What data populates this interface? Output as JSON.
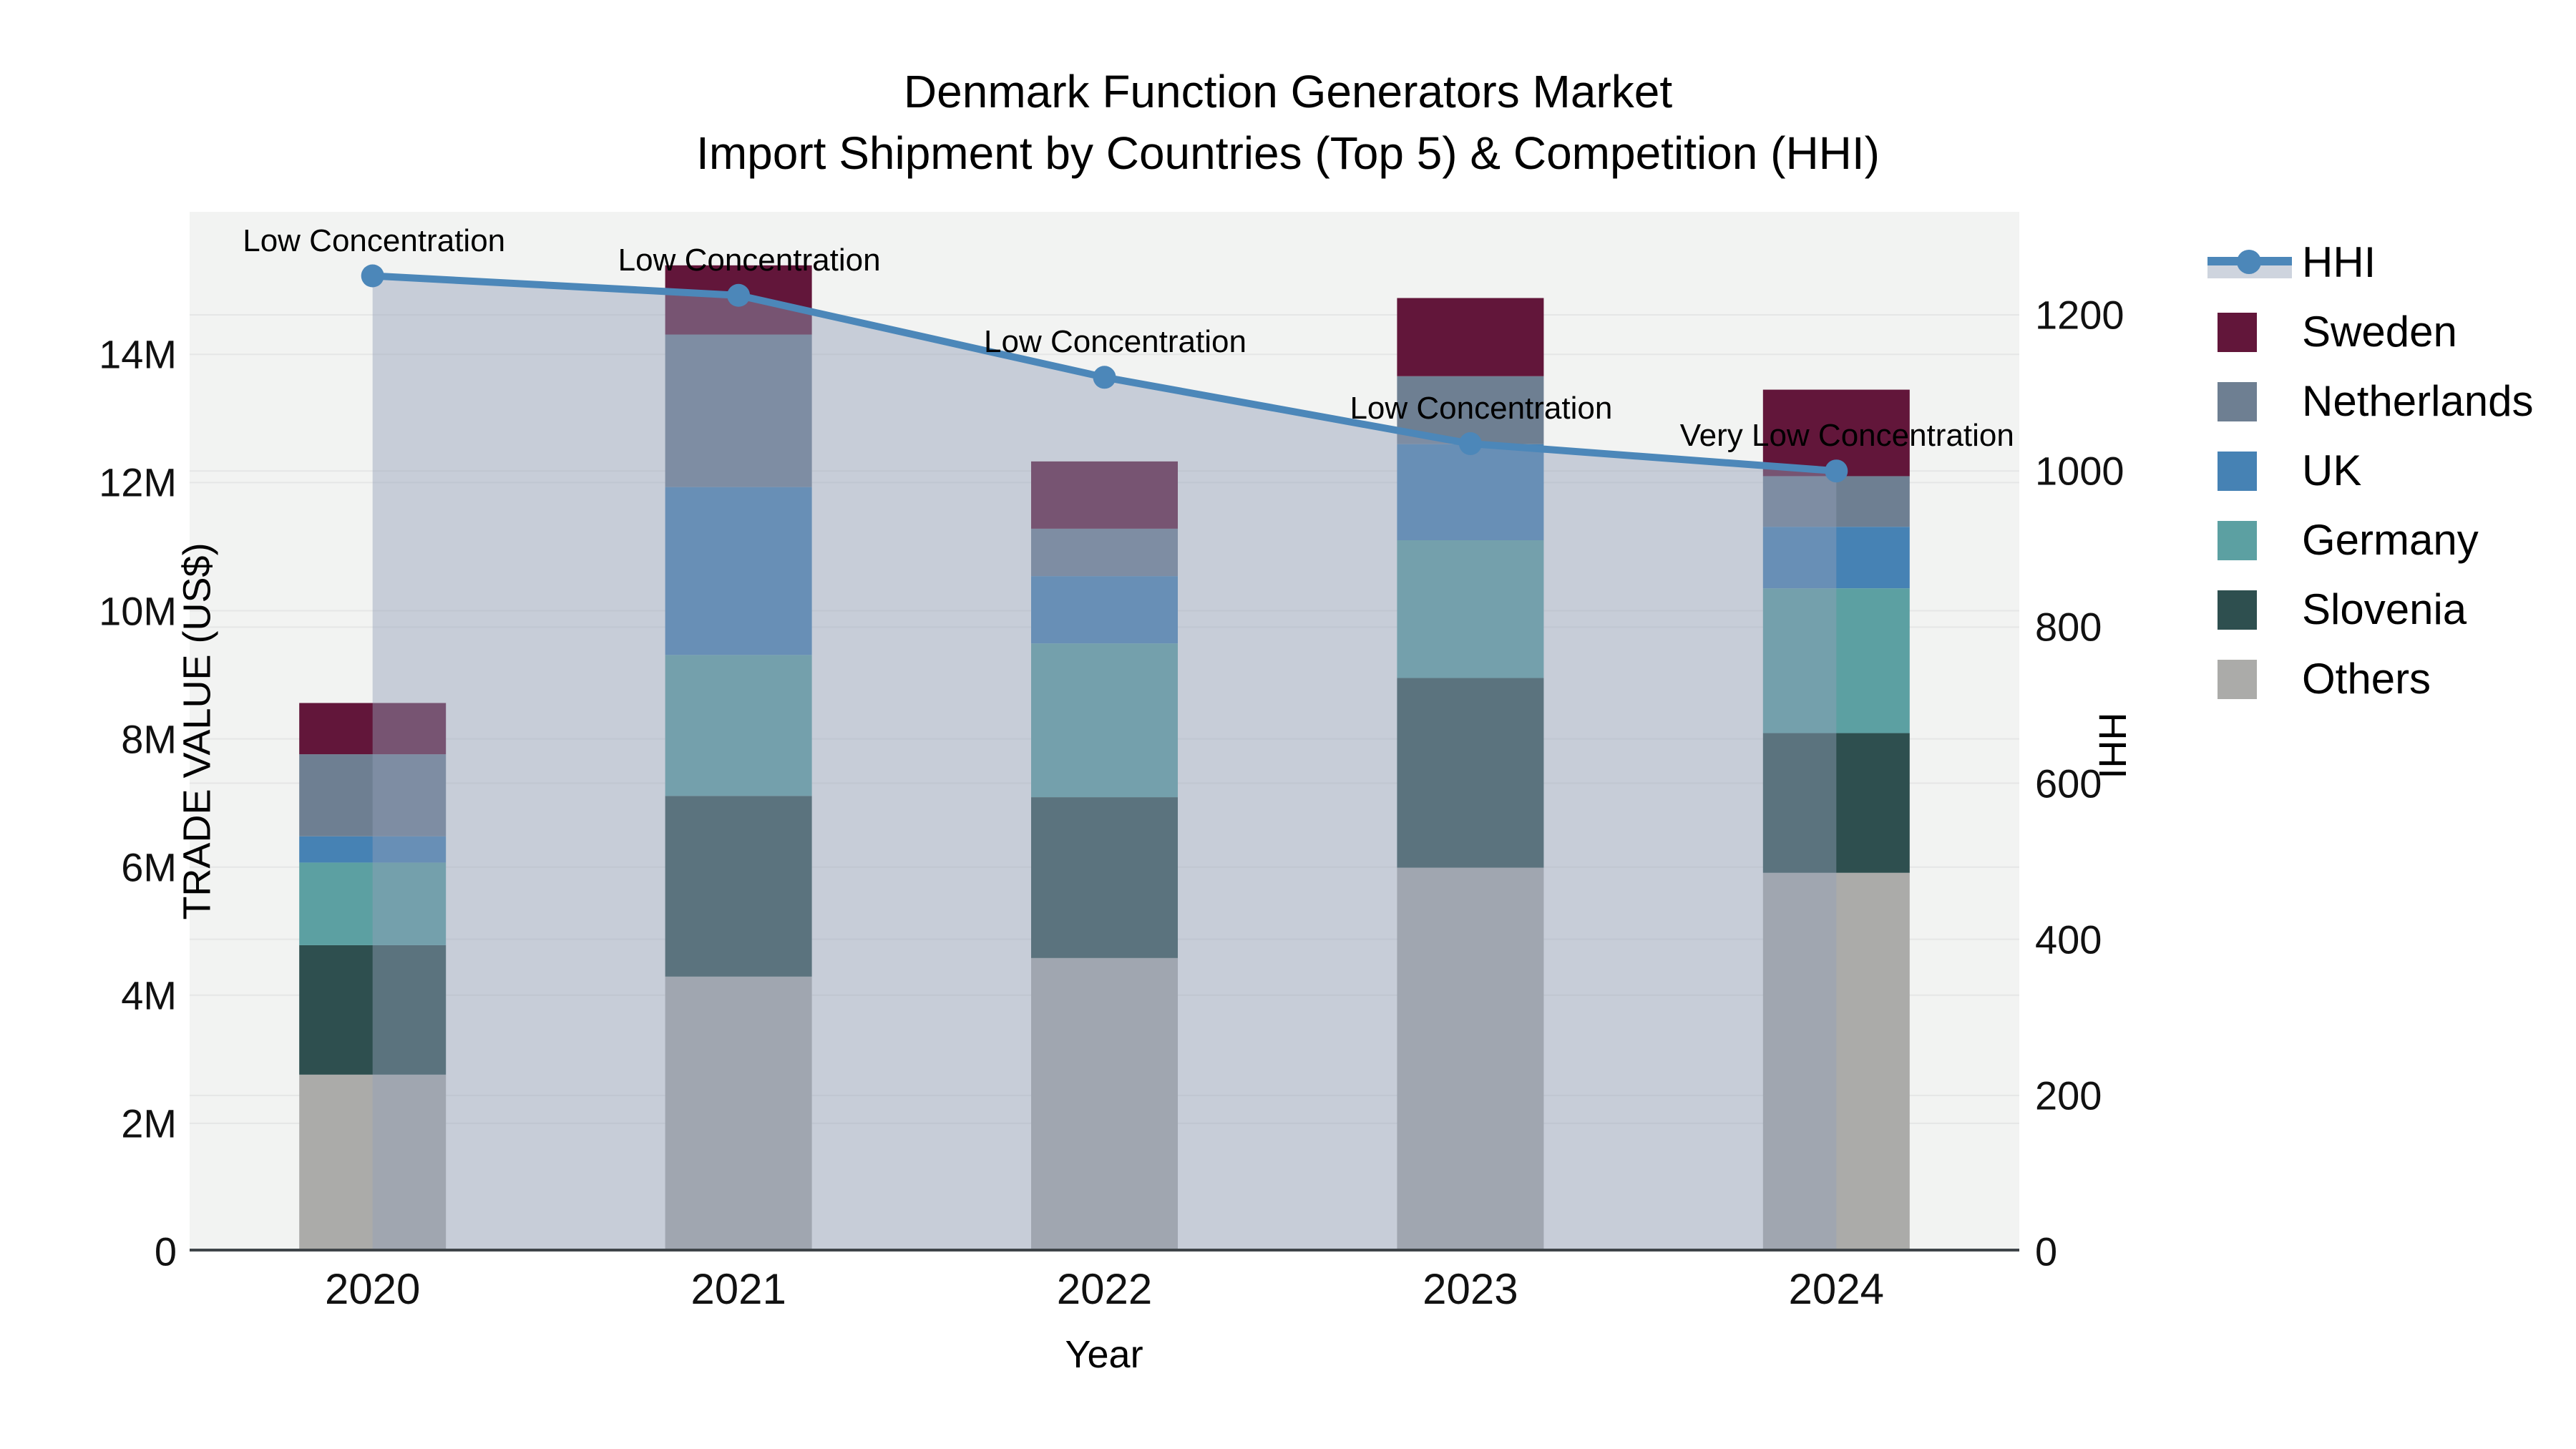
{
  "title": {
    "line1": "Denmark Function Generators Market",
    "line2": "Import Shipment by Countries (Top 5) & Competition (HHI)"
  },
  "axes": {
    "x": {
      "title": "Year",
      "ticks": [
        "2020",
        "2021",
        "2022",
        "2023",
        "2024"
      ]
    },
    "left": {
      "title": "TRADE VALUE (US$)",
      "ticks": [
        {
          "label": "0",
          "value": 0
        },
        {
          "label": "2M",
          "value": 2
        },
        {
          "label": "4M",
          "value": 4
        },
        {
          "label": "6M",
          "value": 6
        },
        {
          "label": "8M",
          "value": 8
        },
        {
          "label": "10M",
          "value": 10
        },
        {
          "label": "12M",
          "value": 12
        },
        {
          "label": "14M",
          "value": 14
        }
      ],
      "range_musd": [
        0,
        16.2
      ]
    },
    "right": {
      "title": "HHI",
      "ticks": [
        {
          "label": "0",
          "value": 0
        },
        {
          "label": "200",
          "value": 200
        },
        {
          "label": "400",
          "value": 400
        },
        {
          "label": "600",
          "value": 600
        },
        {
          "label": "800",
          "value": 800
        },
        {
          "label": "1000",
          "value": 1000
        },
        {
          "label": "1200",
          "value": 1200
        }
      ],
      "range": [
        0,
        1332
      ]
    }
  },
  "legend": {
    "items": [
      {
        "label": "HHI",
        "type": "line",
        "color": "#4c87b9"
      },
      {
        "label": "Sweden",
        "type": "swatch",
        "color": "#62163a"
      },
      {
        "label": "Netherlands",
        "type": "swatch",
        "color": "#6e7f92"
      },
      {
        "label": "UK",
        "type": "swatch",
        "color": "#4682b4"
      },
      {
        "label": "Germany",
        "type": "swatch",
        "color": "#5ca0a2"
      },
      {
        "label": "Slovenia",
        "type": "swatch",
        "color": "#2e4f4f"
      },
      {
        "label": "Others",
        "type": "swatch",
        "color": "#ababa9"
      }
    ]
  },
  "chart_data": {
    "type": "bar+line",
    "title": "Denmark Function Generators Market — Import Shipment by Countries (Top 5) & Competition (HHI)",
    "categories": [
      "2020",
      "2021",
      "2022",
      "2023",
      "2024"
    ],
    "xlabel": "Year",
    "ylabel_left": "TRADE VALUE (US$)",
    "ylabel_right": "HHI",
    "grid": true,
    "legend_position": "right",
    "stack_order_bottom_to_top": [
      "Others",
      "Slovenia",
      "Germany",
      "UK",
      "Netherlands",
      "Sweden"
    ],
    "series": [
      {
        "name": "Sweden",
        "color": "#62163a",
        "values_musd": [
          0.8,
          1.08,
          1.05,
          1.22,
          1.35
        ]
      },
      {
        "name": "Netherlands",
        "color": "#6e7f92",
        "values_musd": [
          1.28,
          2.38,
          0.74,
          1.06,
          0.79
        ]
      },
      {
        "name": "UK",
        "color": "#4682b4",
        "values_musd": [
          0.41,
          2.62,
          1.05,
          1.5,
          0.96
        ]
      },
      {
        "name": "Germany",
        "color": "#5ca0a2",
        "values_musd": [
          1.29,
          2.2,
          2.4,
          2.15,
          2.26
        ]
      },
      {
        "name": "Slovenia",
        "color": "#2e4f4f",
        "values_musd": [
          2.02,
          2.82,
          2.51,
          2.96,
          2.18
        ]
      },
      {
        "name": "Others",
        "color": "#ababa9",
        "values_musd": [
          2.76,
          4.29,
          4.58,
          5.99,
          5.91
        ]
      }
    ],
    "totals_musd": [
      8.56,
      15.39,
      12.33,
      14.88,
      13.45
    ],
    "hhi_line": {
      "name": "HHI",
      "color": "#4c87b9",
      "fill_color": "rgba(146,160,183,0.45)",
      "values": [
        1250,
        1225,
        1120,
        1035,
        1000
      ]
    },
    "annotations": [
      {
        "year": "2020",
        "text": "Low Concentration"
      },
      {
        "year": "2021",
        "text": "Low Concentration"
      },
      {
        "year": "2022",
        "text": "Low Concentration"
      },
      {
        "year": "2023",
        "text": "Low Concentration"
      },
      {
        "year": "2024",
        "text": "Very Low Concentration"
      }
    ]
  }
}
